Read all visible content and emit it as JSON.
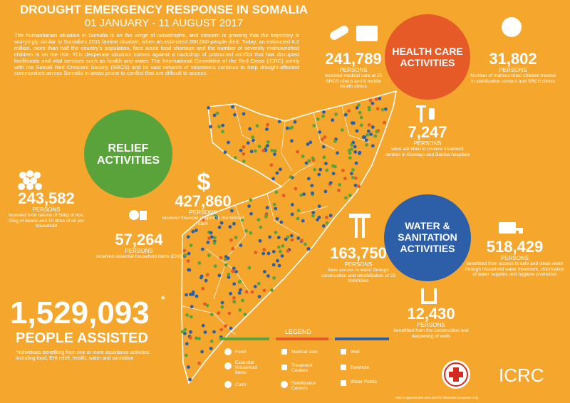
{
  "header": {
    "title": "DROUGHT EMERGENCY RESPONSE IN SOMALIA",
    "subtitle": "01 JANUARY - 11 AUGUST 2017",
    "intro": "The humanitarian situation in Somalia is on the verge of catastrophe, and concern is growing that the trajectory is worryingly similar to Somalia's 2011 famine disaster, when an estimated 260,000 people died. Today, an estimated 6.2 million, more than half the country's population, face acute food shortage and the number of severely malnourished children is on the rise. This desperate situation comes against a backdrop of protracted conflict that has disrupted livelihoods and vital services such as health and water. The International Committee of the Red Cross (ICRC) jointly with the Somali Red Crescent Society (SRCS) and its vast network of volunteers continue to help drought-affected communities across Somalia in areas prone to conflict that are difficult to access."
  },
  "relief": {
    "title": [
      "RELIEF",
      "ACTIVITIES"
    ],
    "items": [
      {
        "number": "243,582",
        "unit": "PERSONS",
        "description": "received food rations of 50kg of rice, 25kg of beans and 10 litres of oil per household"
      },
      {
        "number": "427,860",
        "unit": "PERSONS",
        "description": "received financial support in the form of cash"
      },
      {
        "number": "57,264",
        "unit": "PERSONS",
        "description": "received essential household items (EHI)"
      }
    ]
  },
  "health": {
    "title": [
      "HEALTH CARE",
      "ACTIVITIES"
    ],
    "items": [
      {
        "number": "241,789",
        "unit": "PERSONS",
        "description": "received medical care at 25 SRCS clinics and 6 mobile health clinics"
      },
      {
        "number": "31,802",
        "unit": "PERSONS",
        "description": "Number of malnourished children treated in stabilization centers and SRCS clinics"
      },
      {
        "number": "7,247",
        "unit": "PERSONS",
        "description": "were admitted in cholera treatment centres in Kismayo and Baidoa hospitals"
      }
    ]
  },
  "wash": {
    "title": [
      "WATER &",
      "SANITATION",
      "ACTIVITIES"
    ],
    "items": [
      {
        "number": "163,750",
        "unit": "PERSONS",
        "description": "have access to water through construction and rehabilitation of 23 boreholes"
      },
      {
        "number": "518,429",
        "unit": "PERSONS",
        "description": "benefitted from access to safe and clean water through household water treatment, chlorination of water supplies and hygiene promotion"
      },
      {
        "number": "12,430",
        "unit": "PERSONS",
        "description": "benefitted from the construction and deepening of wells"
      }
    ]
  },
  "total": {
    "number": "1,529,093",
    "asterisk": "*",
    "label": "PEOPLE ASSISTED",
    "footnote": "*Individuals benefiting from one or more assistance activities including food, EHI relief, health, water and sanitation"
  },
  "legend": {
    "title": "LEGEND",
    "items": [
      "Food",
      "Essential Household Items",
      "Cash",
      "Medical care",
      "Treatment Centers",
      "Stabilization Centers",
      "Well",
      "Borehole",
      "Water Points"
    ]
  },
  "footer": {
    "logo": "ICRC",
    "map_note": "Map is approximate and used for illustrative purposes only."
  }
}
